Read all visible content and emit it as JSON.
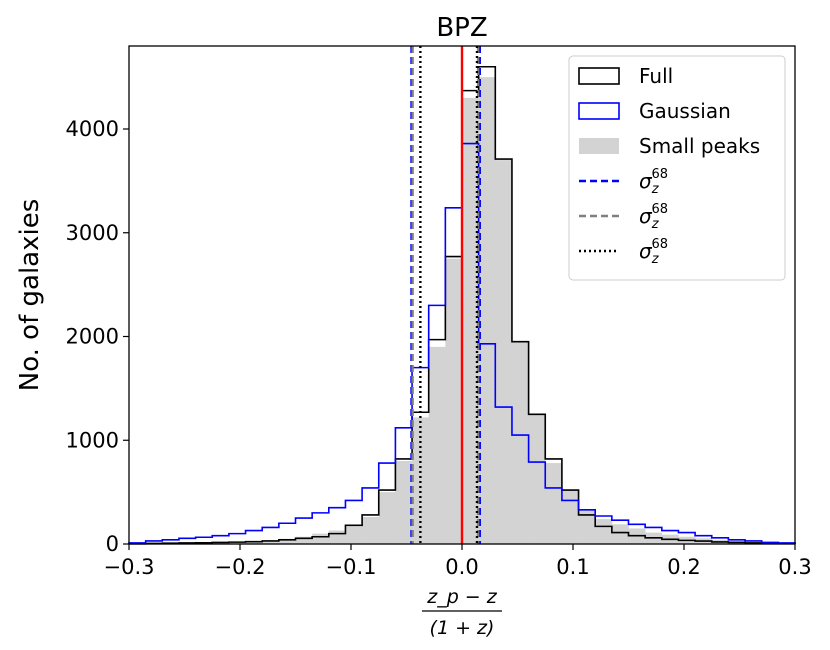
{
  "chart_data": {
    "type": "histogram",
    "title": "BPZ",
    "ylabel": "No. of galaxies",
    "xlabel": {
      "numerator": "z_p − z",
      "denominator": "(1 + z)"
    },
    "xlim": [
      -0.3,
      0.3
    ],
    "ylim": [
      0,
      4800
    ],
    "xticks": [
      -0.3,
      -0.2,
      -0.1,
      0.0,
      0.1,
      0.2,
      0.3
    ],
    "xtick_labels": [
      "−0.3",
      "−0.2",
      "−0.1",
      "0.0",
      "0.1",
      "0.2",
      "0.3"
    ],
    "yticks": [
      0,
      1000,
      2000,
      3000,
      4000
    ],
    "ytick_labels": [
      "0",
      "1000",
      "2000",
      "3000",
      "4000"
    ],
    "bins": {
      "start": -0.3,
      "width": 0.015,
      "count": 40
    },
    "series": [
      {
        "name": "Full",
        "style": "step",
        "color": "#000000",
        "values": [
          2,
          5,
          8,
          10,
          12,
          15,
          18,
          22,
          30,
          40,
          55,
          70,
          100,
          180,
          280,
          520,
          820,
          1270,
          1970,
          2770,
          4370,
          4600,
          3710,
          1950,
          1250,
          820,
          520,
          280,
          170,
          110,
          80,
          60,
          45,
          35,
          28,
          20,
          15,
          10,
          8,
          5
        ]
      },
      {
        "name": "Gaussian",
        "style": "step",
        "color": "#0000ff",
        "values": [
          10,
          30,
          40,
          55,
          65,
          80,
          100,
          130,
          160,
          200,
          250,
          300,
          350,
          420,
          540,
          780,
          1120,
          1700,
          2300,
          3240,
          3860,
          1930,
          1320,
          1050,
          790,
          540,
          420,
          330,
          270,
          230,
          190,
          160,
          130,
          110,
          80,
          60,
          40,
          30,
          15,
          10
        ]
      },
      {
        "name": "Small peaks",
        "style": "filled",
        "color": "#d3d3d3",
        "values": [
          0,
          2,
          5,
          8,
          10,
          14,
          18,
          25,
          35,
          50,
          70,
          100,
          130,
          170,
          260,
          500,
          800,
          1220,
          1900,
          2750,
          4300,
          4500,
          3700,
          1950,
          1250,
          780,
          520,
          330,
          240,
          190,
          150,
          110,
          90,
          70,
          55,
          40,
          30,
          20,
          10,
          5
        ]
      }
    ],
    "vlines": [
      {
        "name": "σ68 Gaussian lower",
        "x": -0.0455,
        "style": "dashed",
        "color": "#0000ff"
      },
      {
        "name": "σ68 Gaussian upper",
        "x": 0.016,
        "style": "dashed",
        "color": "#0000ff"
      },
      {
        "name": "σ68 Small peaks lower",
        "x": -0.0445,
        "style": "dashed",
        "color": "#808080"
      },
      {
        "name": "σ68 Small peaks upper",
        "x": 0.0145,
        "style": "dashed",
        "color": "#808080"
      },
      {
        "name": "σ68 Full lower",
        "x": -0.0375,
        "style": "dotted",
        "color": "#000000"
      },
      {
        "name": "σ68 Full upper",
        "x": 0.0135,
        "style": "dotted",
        "color": "#000000"
      },
      {
        "name": "zero",
        "x": 0.0,
        "style": "solid",
        "color": "#ff0000"
      }
    ],
    "legend": {
      "placement": "top-right",
      "entries": [
        {
          "label": "Full",
          "kind": "box",
          "color": "#000000"
        },
        {
          "label": "Gaussian",
          "kind": "box",
          "color": "#0000ff"
        },
        {
          "label": "Small peaks",
          "kind": "fill",
          "color": "#d3d3d3"
        },
        {
          "label": "σ",
          "sub": "z",
          "sup": "68",
          "kind": "dashed",
          "color": "#0000ff"
        },
        {
          "label": "σ",
          "sub": "z",
          "sup": "68",
          "kind": "dashed",
          "color": "#808080"
        },
        {
          "label": "σ",
          "sub": "z",
          "sup": "68",
          "kind": "dotted",
          "color": "#000000"
        }
      ]
    }
  }
}
